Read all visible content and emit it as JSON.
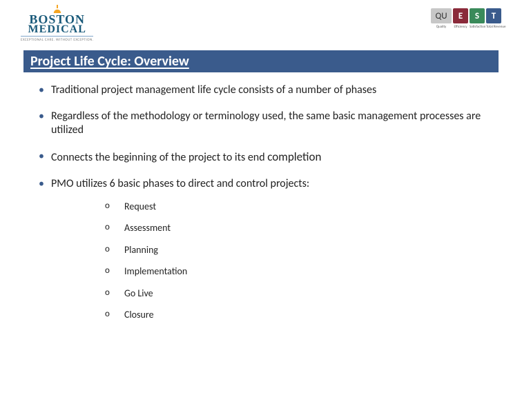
{
  "header": {
    "logo_top": "BOSTON",
    "logo_bottom": "MEDICAL",
    "tagline": "EXCEPTIONAL CARE. WITHOUT EXCEPTION.",
    "quest": {
      "qu": "QU",
      "boxes": [
        {
          "letter": "E",
          "color": "#8a2a3a",
          "label": "Efficiency"
        },
        {
          "letter": "S",
          "color": "#3a8a5a",
          "label": "Satisfaction"
        },
        {
          "letter": "T",
          "color": "#3a5b8c",
          "label": "Total Revenue"
        }
      ],
      "quality_label": "Quality"
    }
  },
  "title": "Project Life Cycle:  Overview",
  "bullets": [
    "Traditional project management life cycle consists of a number of phases",
    "Regardless of the methodology or terminology used, the same basic management processes are utilized",
    "Connects the beginning of the project to its end ",
    "PMO utilizes 6 basic phases to direct and control projects:"
  ],
  "completion_word": "completion",
  "phases": [
    "Request",
    "Assessment",
    "Planning",
    "Implementation",
    "Go Live",
    "Closure"
  ]
}
